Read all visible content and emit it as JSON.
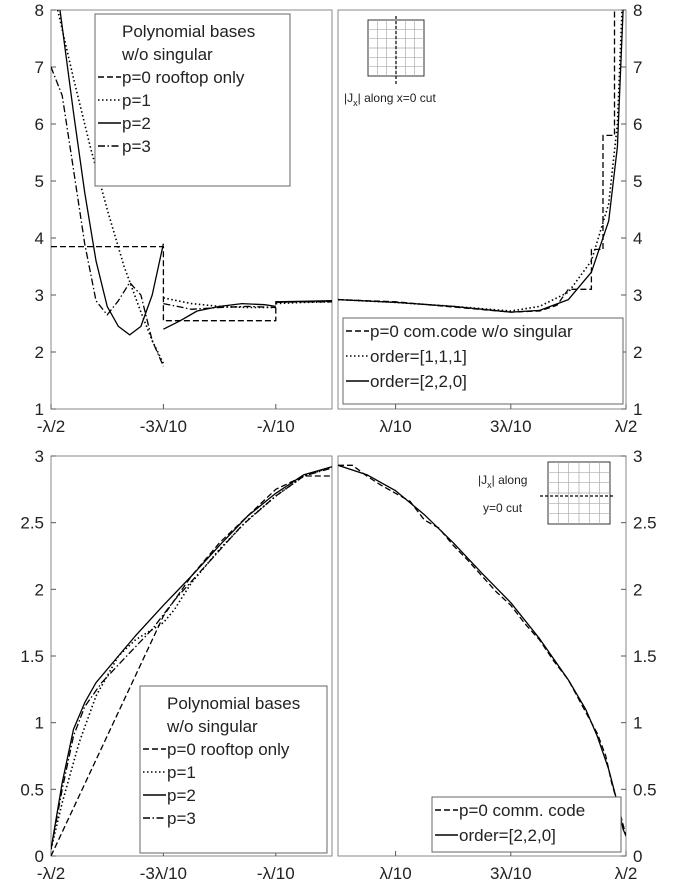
{
  "chart_data": [
    {
      "id": "top-left",
      "type": "line",
      "xlim": [
        -0.5,
        0
      ],
      "ylim": [
        1,
        8
      ],
      "xticks": [
        -0.5,
        -0.3,
        -0.1
      ],
      "xtick_labels": [
        "-λ/2",
        "-3λ/10",
        "-λ/10"
      ],
      "yticks": [
        1,
        2,
        3,
        4,
        5,
        6,
        7,
        8
      ],
      "ytick_labels": [
        "1",
        "2",
        "3",
        "4",
        "5",
        "6",
        "7",
        "8"
      ],
      "ytick_side": "left",
      "grid": false,
      "legend_position": "top-right",
      "legend_title_lines": [
        "Polynomial bases",
        "w/o singular"
      ],
      "series": [
        {
          "name": "p=0 rooftop only",
          "dash": "dashed",
          "segments": [
            [
              [
                -0.5,
                3.85
              ],
              [
                -0.3,
                3.85
              ],
              [
                -0.3,
                2.55
              ],
              [
                -0.1,
                2.55
              ],
              [
                -0.1,
                2.88
              ],
              [
                0,
                2.88
              ]
            ]
          ]
        },
        {
          "name": "p=1",
          "dash": "dotted",
          "segments": [
            [
              [
                -0.488,
                8.0
              ],
              [
                -0.46,
                6.8
              ],
              [
                -0.43,
                5.6
              ],
              [
                -0.4,
                4.5
              ],
              [
                -0.37,
                3.5
              ],
              [
                -0.34,
                2.7
              ],
              [
                -0.32,
                2.2
              ],
              [
                -0.3,
                1.8
              ]
            ],
            [
              [
                -0.3,
                2.95
              ],
              [
                -0.25,
                2.85
              ],
              [
                -0.2,
                2.8
              ],
              [
                -0.15,
                2.78
              ],
              [
                -0.1,
                2.78
              ]
            ],
            [
              [
                -0.1,
                2.85
              ],
              [
                -0.05,
                2.87
              ],
              [
                0,
                2.88
              ]
            ]
          ]
        },
        {
          "name": "p=2",
          "dash": "solid",
          "segments": [
            [
              [
                -0.484,
                8.0
              ],
              [
                -0.46,
                6.2
              ],
              [
                -0.44,
                4.8
              ],
              [
                -0.42,
                3.6
              ],
              [
                -0.4,
                2.8
              ],
              [
                -0.38,
                2.45
              ],
              [
                -0.36,
                2.3
              ],
              [
                -0.34,
                2.45
              ],
              [
                -0.32,
                3.0
              ],
              [
                -0.3,
                3.9
              ]
            ],
            [
              [
                -0.3,
                2.4
              ],
              [
                -0.27,
                2.55
              ],
              [
                -0.24,
                2.72
              ],
              [
                -0.2,
                2.8
              ],
              [
                -0.16,
                2.85
              ],
              [
                -0.12,
                2.83
              ],
              [
                -0.1,
                2.8
              ]
            ],
            [
              [
                -0.1,
                2.88
              ],
              [
                -0.05,
                2.89
              ],
              [
                0,
                2.9
              ]
            ]
          ]
        },
        {
          "name": "p=3",
          "dash": "dashdot",
          "segments": [
            [
              [
                -0.5,
                7.0
              ],
              [
                -0.48,
                6.5
              ],
              [
                -0.46,
                5.2
              ],
              [
                -0.44,
                3.9
              ],
              [
                -0.42,
                2.9
              ],
              [
                -0.4,
                2.65
              ],
              [
                -0.38,
                2.9
              ],
              [
                -0.36,
                3.22
              ],
              [
                -0.34,
                3.0
              ],
              [
                -0.32,
                2.2
              ],
              [
                -0.3,
                1.75
              ]
            ],
            [
              [
                -0.3,
                2.85
              ],
              [
                -0.25,
                2.75
              ],
              [
                -0.2,
                2.78
              ],
              [
                -0.15,
                2.8
              ],
              [
                -0.1,
                2.78
              ]
            ],
            [
              [
                -0.1,
                2.87
              ],
              [
                0,
                2.89
              ]
            ]
          ]
        }
      ]
    },
    {
      "id": "top-right",
      "type": "line",
      "xlim": [
        0,
        0.5
      ],
      "ylim": [
        1,
        8
      ],
      "xticks": [
        0.1,
        0.3,
        0.5
      ],
      "xtick_labels": [
        "λ/10",
        "3λ/10",
        "λ/2"
      ],
      "yticks": [
        1,
        2,
        3,
        4,
        5,
        6,
        7,
        8
      ],
      "ytick_labels": [
        "1",
        "2",
        "3",
        "4",
        "5",
        "6",
        "7",
        "8"
      ],
      "ytick_side": "right",
      "grid": false,
      "legend_position": "bottom-right",
      "legend_title_lines": [],
      "inset": {
        "cut": "vertical",
        "label_lines": [
          "|Jx| along x=0 cut"
        ],
        "position": "top-left"
      },
      "series": [
        {
          "name": "p=0 com.code w/o singular",
          "dash": "dashed",
          "segments": [
            [
              [
                0,
                2.92
              ],
              [
                0.1,
                2.88
              ],
              [
                0.2,
                2.79
              ],
              [
                0.3,
                2.7
              ],
              [
                0.35,
                2.72
              ],
              [
                0.38,
                2.82
              ],
              [
                0.4,
                3.1
              ],
              [
                0.44,
                3.1
              ],
              [
                0.44,
                3.8
              ],
              [
                0.46,
                3.8
              ],
              [
                0.46,
                5.8
              ],
              [
                0.48,
                5.8
              ],
              [
                0.48,
                8.0
              ]
            ]
          ]
        },
        {
          "name": "order=[1,1,1]",
          "dash": "dotted",
          "segments": [
            [
              [
                0,
                2.92
              ],
              [
                0.1,
                2.87
              ],
              [
                0.2,
                2.8
              ],
              [
                0.3,
                2.72
              ],
              [
                0.35,
                2.8
              ],
              [
                0.4,
                3.05
              ],
              [
                0.44,
                3.6
              ],
              [
                0.47,
                4.6
              ],
              [
                0.485,
                6.0
              ],
              [
                0.493,
                8.0
              ]
            ]
          ]
        },
        {
          "name": "order=[2,2,0]",
          "dash": "solid",
          "segments": [
            [
              [
                0,
                2.92
              ],
              [
                0.1,
                2.87
              ],
              [
                0.2,
                2.8
              ],
              [
                0.3,
                2.7
              ],
              [
                0.35,
                2.73
              ],
              [
                0.4,
                2.92
              ],
              [
                0.44,
                3.4
              ],
              [
                0.47,
                4.3
              ],
              [
                0.485,
                5.6
              ],
              [
                0.495,
                8.0
              ]
            ]
          ]
        }
      ]
    },
    {
      "id": "bottom-left",
      "type": "line",
      "xlim": [
        -0.5,
        0
      ],
      "ylim": [
        0,
        3
      ],
      "xticks": [
        -0.5,
        -0.3,
        -0.1
      ],
      "xtick_labels": [
        "-λ/2",
        "-3λ/10",
        "-λ/10"
      ],
      "yticks": [
        0,
        0.5,
        1,
        1.5,
        2,
        2.5,
        3
      ],
      "ytick_labels": [
        "0",
        "0.5",
        "1",
        "1.5",
        "2",
        "2.5",
        "3"
      ],
      "ytick_side": "left",
      "grid": false,
      "legend_position": "bottom-right",
      "legend_title_lines": [
        "Polynomial bases",
        "w/o singular"
      ],
      "series": [
        {
          "name": "p=0 rooftop only",
          "dash": "dashed",
          "segments": [
            [
              [
                -0.5,
                0.0
              ],
              [
                -0.45,
                0.45
              ],
              [
                -0.4,
                0.9
              ],
              [
                -0.35,
                1.35
              ],
              [
                -0.3,
                1.8
              ],
              [
                -0.25,
                2.1
              ],
              [
                -0.2,
                2.35
              ],
              [
                -0.15,
                2.55
              ],
              [
                -0.1,
                2.75
              ],
              [
                -0.05,
                2.85
              ],
              [
                0,
                2.85
              ]
            ]
          ]
        },
        {
          "name": "p=1",
          "dash": "dotted",
          "segments": [
            [
              [
                -0.5,
                0.05
              ],
              [
                -0.48,
                0.4
              ],
              [
                -0.45,
                0.85
              ],
              [
                -0.42,
                1.2
              ],
              [
                -0.38,
                1.5
              ],
              [
                -0.35,
                1.62
              ],
              [
                -0.3,
                1.75
              ],
              [
                -0.28,
                1.85
              ],
              [
                -0.25,
                2.05
              ],
              [
                -0.2,
                2.3
              ],
              [
                -0.15,
                2.52
              ],
              [
                -0.1,
                2.7
              ],
              [
                -0.05,
                2.85
              ],
              [
                0,
                2.92
              ]
            ]
          ]
        },
        {
          "name": "p=2",
          "dash": "solid",
          "segments": [
            [
              [
                -0.5,
                0.05
              ],
              [
                -0.48,
                0.55
              ],
              [
                -0.46,
                0.95
              ],
              [
                -0.44,
                1.15
              ],
              [
                -0.42,
                1.3
              ],
              [
                -0.38,
                1.5
              ],
              [
                -0.35,
                1.65
              ],
              [
                -0.3,
                1.88
              ],
              [
                -0.25,
                2.1
              ],
              [
                -0.2,
                2.33
              ],
              [
                -0.15,
                2.55
              ],
              [
                -0.1,
                2.72
              ],
              [
                -0.05,
                2.86
              ],
              [
                0,
                2.92
              ]
            ]
          ]
        },
        {
          "name": "p=3",
          "dash": "dashdot",
          "segments": [
            [
              [
                -0.5,
                0.05
              ],
              [
                -0.48,
                0.5
              ],
              [
                -0.46,
                0.9
              ],
              [
                -0.44,
                1.12
              ],
              [
                -0.41,
                1.3
              ],
              [
                -0.37,
                1.48
              ],
              [
                -0.32,
                1.7
              ],
              [
                -0.28,
                1.92
              ],
              [
                -0.22,
                2.2
              ],
              [
                -0.16,
                2.48
              ],
              [
                -0.1,
                2.7
              ],
              [
                -0.05,
                2.85
              ],
              [
                0,
                2.91
              ]
            ]
          ]
        }
      ]
    },
    {
      "id": "bottom-right",
      "type": "line",
      "xlim": [
        0,
        0.5
      ],
      "ylim": [
        0,
        3
      ],
      "xticks": [
        0.1,
        0.3,
        0.5
      ],
      "xtick_labels": [
        "λ/10",
        "3λ/10",
        "λ/2"
      ],
      "yticks": [
        0,
        0.5,
        1,
        1.5,
        2,
        2.5,
        3
      ],
      "ytick_labels": [
        "0",
        "0.5",
        "1",
        "1.5",
        "2",
        "2.5",
        "3"
      ],
      "ytick_side": "right",
      "grid": false,
      "legend_position": "bottom-right",
      "legend_title_lines": [],
      "inset": {
        "cut": "horizontal",
        "label_lines": [
          "|Jx| along",
          "y=0 cut"
        ],
        "position": "top-right"
      },
      "series": [
        {
          "name": "p=0 comm. code",
          "dash": "dashed",
          "segments": [
            [
              [
                0,
                2.93
              ],
              [
                0.025,
                2.93
              ],
              [
                0.05,
                2.85
              ],
              [
                0.075,
                2.78
              ],
              [
                0.1,
                2.72
              ],
              [
                0.125,
                2.66
              ],
              [
                0.15,
                2.52
              ],
              [
                0.175,
                2.46
              ],
              [
                0.2,
                2.33
              ],
              [
                0.225,
                2.22
              ],
              [
                0.25,
                2.1
              ],
              [
                0.275,
                1.98
              ],
              [
                0.3,
                1.88
              ],
              [
                0.325,
                1.74
              ],
              [
                0.35,
                1.62
              ],
              [
                0.375,
                1.46
              ],
              [
                0.4,
                1.32
              ],
              [
                0.425,
                1.12
              ],
              [
                0.45,
                0.92
              ],
              [
                0.465,
                0.75
              ],
              [
                0.475,
                0.55
              ],
              [
                0.485,
                0.4
              ],
              [
                0.5,
                0.15
              ]
            ]
          ]
        },
        {
          "name": "order=[2,2,0]",
          "dash": "solid",
          "segments": [
            [
              [
                0,
                2.93
              ],
              [
                0.05,
                2.86
              ],
              [
                0.1,
                2.74
              ],
              [
                0.15,
                2.56
              ],
              [
                0.2,
                2.35
              ],
              [
                0.25,
                2.12
              ],
              [
                0.3,
                1.9
              ],
              [
                0.35,
                1.63
              ],
              [
                0.4,
                1.32
              ],
              [
                0.43,
                1.1
              ],
              [
                0.45,
                0.9
              ],
              [
                0.47,
                0.65
              ],
              [
                0.485,
                0.4
              ],
              [
                0.495,
                0.2
              ],
              [
                0.5,
                0.15
              ]
            ]
          ]
        }
      ]
    }
  ]
}
